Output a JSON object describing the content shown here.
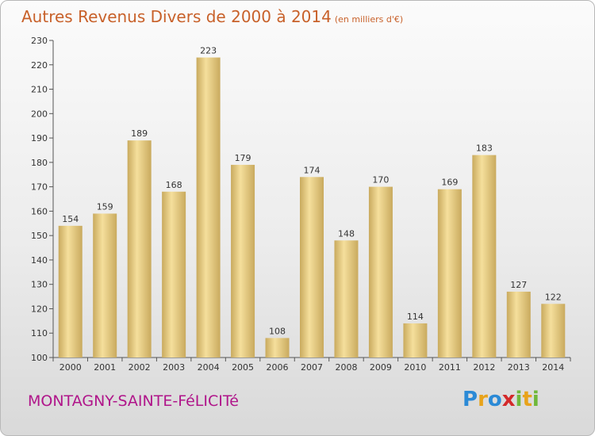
{
  "header": {
    "title": "Autres Revenus Divers de 2000 à 2014",
    "unit": "(en milliers d'€)"
  },
  "footer": {
    "commune": "MONTAGNY-SAINTE-FéLICITé",
    "logo_text": "Proxiti"
  },
  "colors": {
    "title": "#c8612a",
    "commune": "#b0158a",
    "bar_light": "#f5df9c",
    "bar_dark": "#c9aa5e"
  },
  "chart_data": {
    "type": "bar",
    "categories": [
      "2000",
      "2001",
      "2002",
      "2003",
      "2004",
      "2005",
      "2006",
      "2007",
      "2008",
      "2009",
      "2010",
      "2011",
      "2012",
      "2013",
      "2014"
    ],
    "values": [
      154,
      159,
      189,
      168,
      223,
      179,
      108,
      174,
      148,
      170,
      114,
      169,
      183,
      127,
      122
    ],
    "ylim": [
      100,
      230
    ],
    "yticks": [
      100,
      110,
      120,
      130,
      140,
      150,
      160,
      170,
      180,
      190,
      200,
      210,
      220,
      230
    ],
    "grid": false,
    "data_labels": true
  }
}
